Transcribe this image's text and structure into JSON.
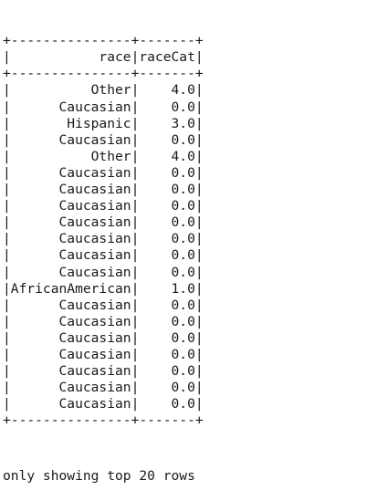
{
  "table": {
    "columns": [
      "race",
      "raceCat"
    ],
    "rows": [
      [
        "Other",
        "4.0"
      ],
      [
        "Caucasian",
        "0.0"
      ],
      [
        "Hispanic",
        "3.0"
      ],
      [
        "Caucasian",
        "0.0"
      ],
      [
        "Other",
        "4.0"
      ],
      [
        "Caucasian",
        "0.0"
      ],
      [
        "Caucasian",
        "0.0"
      ],
      [
        "Caucasian",
        "0.0"
      ],
      [
        "Caucasian",
        "0.0"
      ],
      [
        "Caucasian",
        "0.0"
      ],
      [
        "Caucasian",
        "0.0"
      ],
      [
        "Caucasian",
        "0.0"
      ],
      [
        "AfricanAmerican",
        "1.0"
      ],
      [
        "Caucasian",
        "0.0"
      ],
      [
        "Caucasian",
        "0.0"
      ],
      [
        "Caucasian",
        "0.0"
      ],
      [
        "Caucasian",
        "0.0"
      ],
      [
        "Caucasian",
        "0.0"
      ],
      [
        "Caucasian",
        "0.0"
      ],
      [
        "Caucasian",
        "0.0"
      ]
    ]
  },
  "footer_text": "only showing top 20 rows"
}
